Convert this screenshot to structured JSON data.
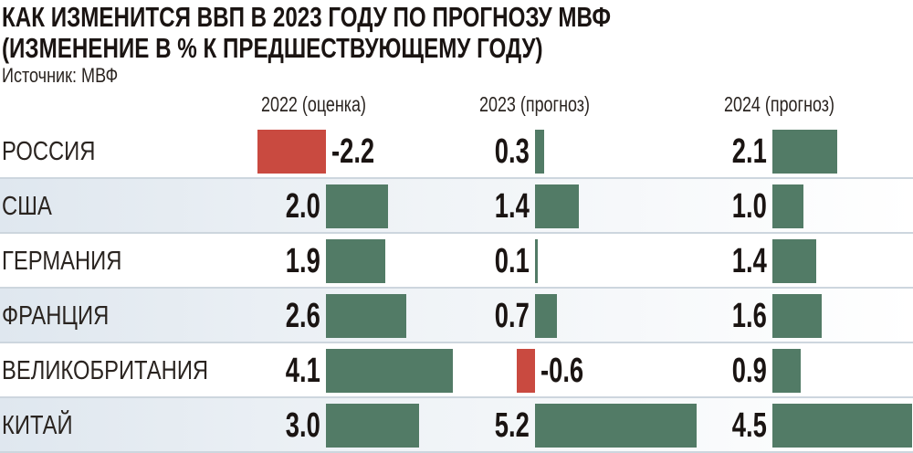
{
  "title_line1": "КАК ИЗМЕНИТСЯ ВВП В 2023 ГОДУ ПО ПРОГНОЗУ МВФ",
  "title_line2": "(ИЗМЕНЕНИЕ В % К ПРЕДШЕСТВУЮЩЕМУ ГОДУ)",
  "source": "Источник: МВФ",
  "colors": {
    "positive": "#527b66",
    "negative": "#c94a40"
  },
  "chart_data": {
    "type": "bar",
    "orientation": "horizontal",
    "title": "КАК ИЗМЕНИТСЯ ВВП В 2023 ГОДУ ПО ПРОГНОЗУ МВФ (ИЗМЕНЕНИЕ В % К ПРЕДШЕСТВУЮЩЕМУ ГОДУ)",
    "categories": [
      "РОССИЯ",
      "США",
      "ГЕРМАНИЯ",
      "ФРАНЦИЯ",
      "ВЕЛИКОБРИТАНИЯ",
      "КИТАЙ"
    ],
    "series": [
      {
        "name": "2022 (оценка)",
        "values": [
          -2.2,
          2.0,
          1.9,
          2.6,
          4.1,
          3.0
        ],
        "labels": [
          "-2.2",
          "2.0",
          "1.9",
          "2.6",
          "4.1",
          "3.0"
        ]
      },
      {
        "name": "2023 (прогноз)",
        "values": [
          0.3,
          1.4,
          0.1,
          0.7,
          -0.6,
          5.2
        ],
        "labels": [
          "0.3",
          "1.4",
          "0.1",
          "0.7",
          "-0.6",
          "5.2"
        ]
      },
      {
        "name": "2024 (прогноз)",
        "values": [
          2.1,
          1.0,
          1.4,
          1.6,
          0.9,
          4.5
        ],
        "labels": [
          "2.1",
          "1.0",
          "1.4",
          "1.6",
          "0.9",
          "4.5"
        ]
      }
    ],
    "grid": false,
    "legend": "none"
  }
}
